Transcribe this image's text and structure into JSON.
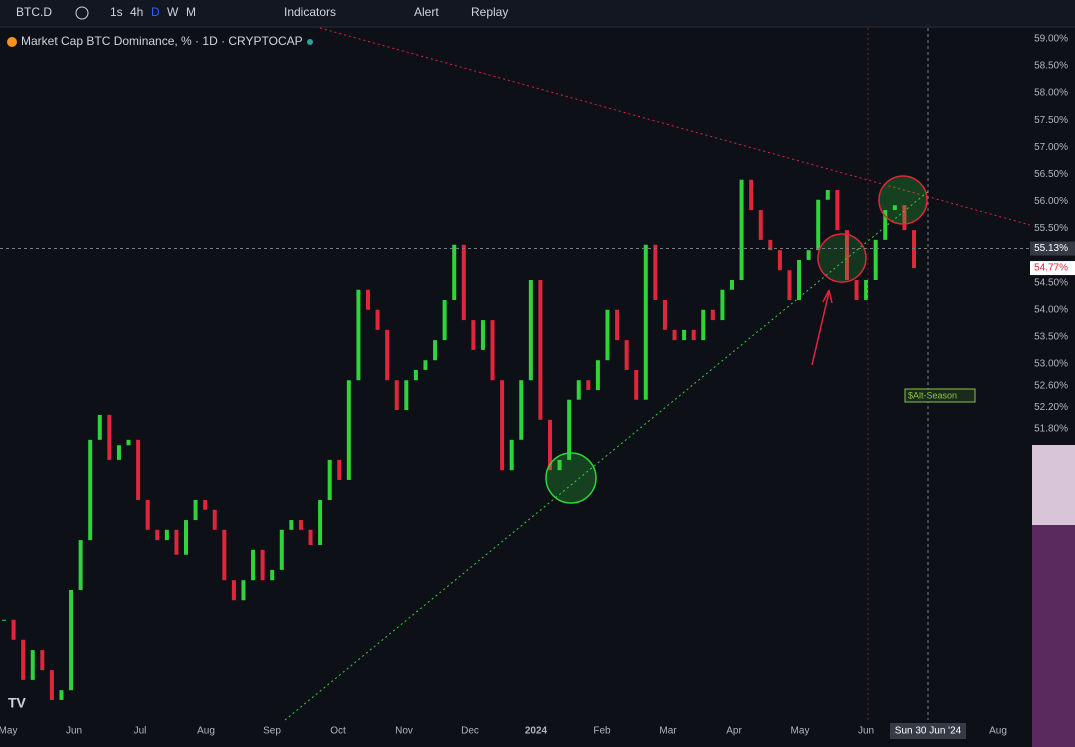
{
  "toolbar": {
    "symbol": "BTC.D",
    "intervals": [
      "1s",
      "4h",
      "D",
      "W",
      "M"
    ],
    "indicators": "Indicators",
    "alert": "Alert",
    "replay": "Replay"
  },
  "chart_data": {
    "type": "candlestick",
    "title": "Market Cap BTC Dominance, % · 1D · CRYPTOCAP",
    "up_color": "#2fd43a",
    "down_color": "#e0263a",
    "values": [
      48.28,
      47.91,
      47.17,
      47.72,
      47.35,
      46.8,
      46.98,
      48.83,
      49.75,
      51.6,
      52.06,
      51.23,
      51.5,
      51.6,
      50.49,
      49.94,
      49.75,
      49.94,
      49.48,
      50.12,
      50.49,
      50.31,
      49.94,
      49.01,
      48.64,
      49.01,
      49.57,
      49.01,
      49.2,
      49.94,
      50.12,
      49.94,
      49.66,
      50.49,
      51.23,
      50.86,
      52.7,
      54.37,
      54.0,
      53.63,
      52.7,
      52.15,
      52.7,
      52.89,
      53.07,
      53.44,
      54.18,
      55.2,
      53.81,
      53.26,
      53.81,
      52.7,
      51.04,
      51.6,
      52.7,
      54.55,
      51.97,
      51.04,
      51.23,
      52.34,
      52.7,
      52.52,
      53.07,
      54.0,
      53.44,
      52.89,
      52.34,
      55.2,
      54.18,
      53.63,
      53.44,
      53.63,
      53.44,
      54.0,
      53.81,
      54.37,
      54.55,
      56.4,
      55.84,
      55.29,
      55.1,
      54.73,
      54.18,
      54.92,
      55.1,
      56.03,
      56.21,
      55.47,
      54.55,
      54.18,
      54.55,
      55.29,
      55.84,
      55.93,
      55.47,
      54.77
    ],
    "ylim": [
      46.43,
      59.2
    ],
    "yticks": [
      {
        "value": 59,
        "label": "59.00%"
      },
      {
        "value": 58.5,
        "label": "58.50%"
      },
      {
        "value": 58,
        "label": "58.00%"
      },
      {
        "value": 57.5,
        "label": "57.50%"
      },
      {
        "value": 57,
        "label": "57.00%"
      },
      {
        "value": 56.5,
        "label": "56.50%"
      },
      {
        "value": 56,
        "label": "56.00%"
      },
      {
        "value": 55.5,
        "label": "55.50%"
      },
      {
        "value": 54.5,
        "label": "54.50%"
      },
      {
        "value": 54,
        "label": "54.00%"
      },
      {
        "value": 53.5,
        "label": "53.50%"
      },
      {
        "value": 53,
        "label": "53.00%"
      },
      {
        "value": 52.6,
        "label": "52.60%"
      },
      {
        "value": 52.2,
        "label": "52.20%"
      },
      {
        "value": 51.8,
        "label": "51.80%"
      }
    ],
    "x_labels": [
      "May",
      "Jun",
      "Jul",
      "Aug",
      "Sep",
      "Oct",
      "Nov",
      "Dec",
      "2024",
      "Feb",
      "Mar",
      "Apr",
      "May",
      "Jun",
      null,
      "Aug"
    ],
    "crosshair_date": "Sun 30 Jun '24",
    "crosshair_price": {
      "value": 55.13,
      "label": "55.13%"
    },
    "last_price": {
      "value": 54.77,
      "label": "54.77%"
    },
    "annotation": "$Alt-Season"
  }
}
